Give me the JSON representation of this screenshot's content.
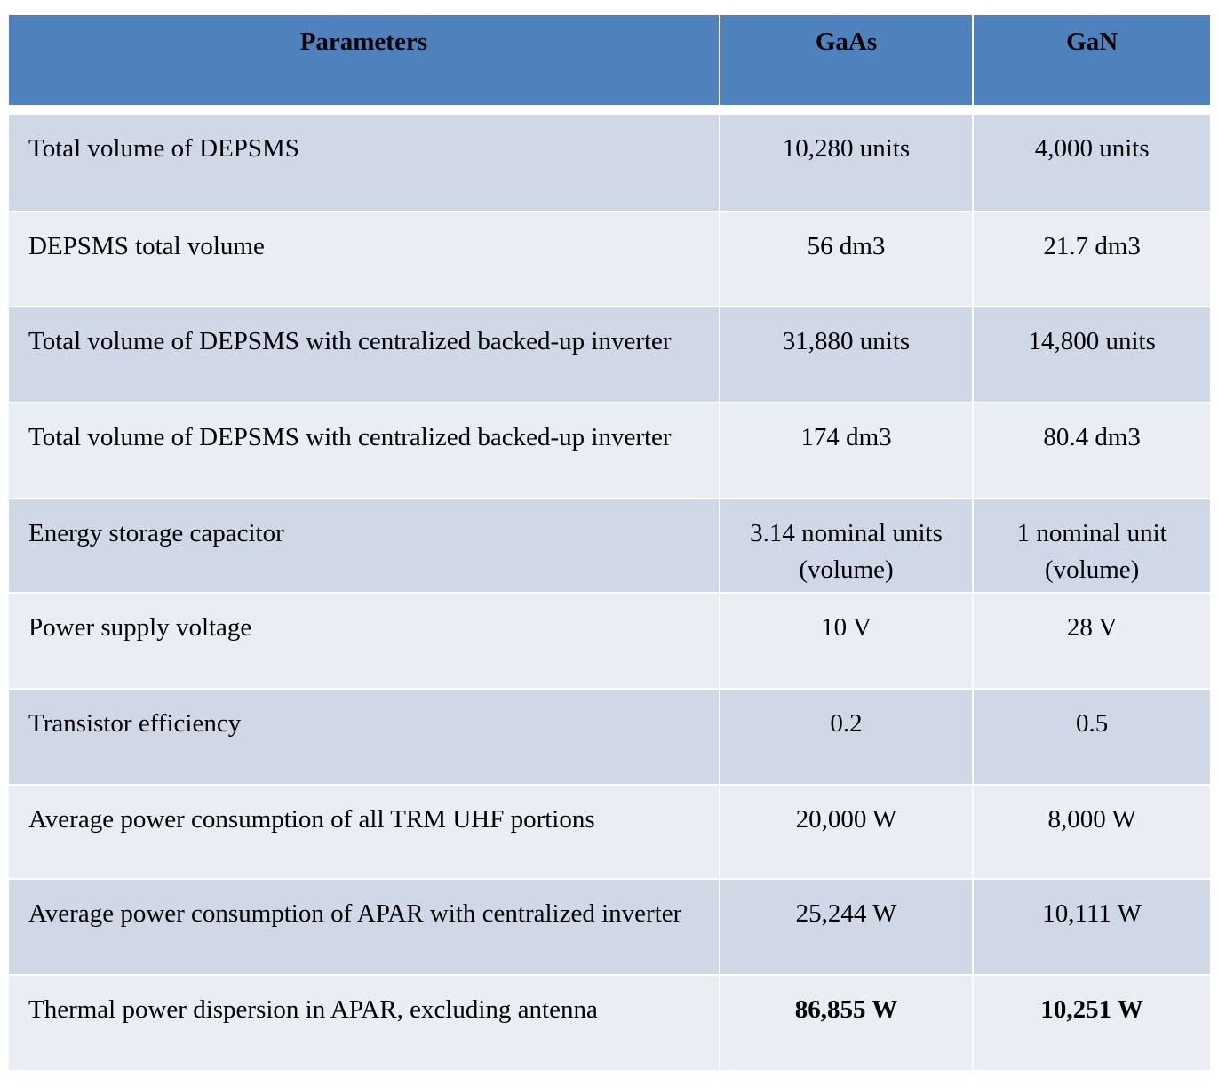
{
  "colors": {
    "header": "#4F81BD",
    "row_odd": "#D0D8E8",
    "row_even": "#E9EDF4"
  },
  "header": {
    "parameters": "Parameters",
    "gaas": "GaAs",
    "gan": "GaN"
  },
  "rows": [
    {
      "parameter": "Total volume of DEPSMS",
      "gaas": "10,280 units",
      "gan": "4,000 units"
    },
    {
      "parameter": "DEPSMS total volume",
      "gaas": "56 dm3",
      "gan": "21.7 dm3"
    },
    {
      "parameter": "Total volume of DEPSMS with centralized backed-up inverter",
      "gaas": "31,880 units",
      "gan": "14,800 units"
    },
    {
      "parameter": "Total volume of DEPSMS with centralized backed-up inverter",
      "gaas": "174 dm3",
      "gan": "80.4 dm3"
    },
    {
      "parameter": "Energy storage capacitor",
      "gaas": "3.14 nominal units (volume)",
      "gan": "1 nominal unit (volume)"
    },
    {
      "parameter": "Power supply voltage",
      "gaas": "10 V",
      "gan": "28 V"
    },
    {
      "parameter": "Transistor efficiency",
      "gaas": "0.2",
      "gan": "0.5"
    },
    {
      "parameter": "Average power consumption of all TRM UHF portions",
      "gaas": "20,000 W",
      "gan": "8,000 W"
    },
    {
      "parameter": "Average power consumption of APAR with centralized inverter",
      "gaas": "25,244 W",
      "gan": "10,111 W"
    },
    {
      "parameter": "Thermal power dispersion in APAR, excluding antenna",
      "gaas": "86,855 W",
      "gan": "10,251 W",
      "bold_values": true
    }
  ]
}
